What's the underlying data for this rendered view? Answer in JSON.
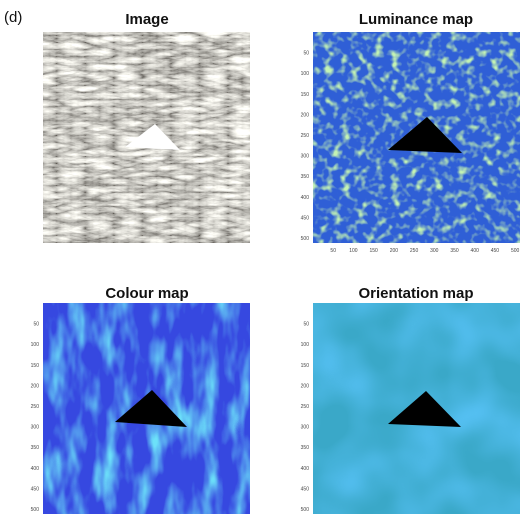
{
  "label": "(d)",
  "panels": [
    {
      "title": "Image"
    },
    {
      "title": "Luminance map",
      "yticks": [
        50,
        100,
        150,
        200,
        250,
        300,
        350,
        400,
        450,
        500
      ],
      "xticks": [
        50,
        100,
        150,
        200,
        250,
        300,
        350,
        400,
        450,
        500
      ]
    },
    {
      "title": "Colour map",
      "yticks": [
        50,
        100,
        150,
        200,
        250,
        300,
        350,
        400,
        450,
        500
      ]
    },
    {
      "title": "Orientation map",
      "yticks": [
        50,
        100,
        150,
        200,
        250,
        300,
        350,
        400,
        450,
        500
      ]
    }
  ]
}
